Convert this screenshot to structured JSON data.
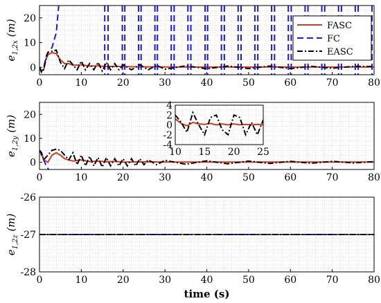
{
  "chart_data": [
    {
      "type": "line",
      "ylabel": "e_{1,2x} (m)",
      "ylabel_main": "e",
      "ylabel_sub": "1,2x",
      "ylabel_unit": "(m)",
      "xlim": [
        0,
        80
      ],
      "ylim": [
        -3,
        25
      ],
      "x_ticks": [
        "0",
        "10",
        "20",
        "30",
        "40",
        "50",
        "60",
        "70",
        "80"
      ],
      "y_ticks": [
        "0",
        "10",
        "20"
      ],
      "grid": "on (minor, dotted)",
      "legend": {
        "placement": "top-right",
        "entries": [
          "FASC",
          "FC",
          "EASC"
        ]
      },
      "series": [
        {
          "name": "FASC",
          "color": "#d03b20",
          "style": "solid",
          "x": [
            0,
            0.5,
            1,
            1.5,
            2,
            3,
            4,
            5,
            6,
            7,
            8,
            10,
            12,
            14,
            16,
            18,
            20,
            24,
            28,
            32,
            40,
            50,
            60,
            70,
            80
          ],
          "y": [
            0,
            -1.5,
            -1,
            3,
            5,
            6,
            5.5,
            3,
            1.5,
            1.5,
            0.8,
            1,
            0.5,
            0.6,
            0.3,
            0.4,
            0.3,
            0.2,
            0.2,
            0.1,
            0.1,
            0.1,
            0.1,
            0.1,
            0.1
          ]
        },
        {
          "name": "FC",
          "color": "#1a1adb",
          "style": "dashed",
          "x": [
            0,
            0.5,
            1,
            1.5,
            2,
            3,
            4,
            4.6
          ],
          "y": [
            0,
            -1.5,
            -0.5,
            4,
            6,
            8,
            14,
            25
          ],
          "spikes": [
            15.6,
            16.4,
            19.8,
            20.4,
            23.7,
            24.3,
            27.6,
            28.2,
            31.5,
            32.2,
            35.5,
            36.2,
            39.6,
            40.2,
            43.5,
            44.2,
            47.5,
            48.2,
            51.5,
            52.2,
            55.5,
            56.2,
            59.5,
            60.2,
            63.5,
            64.2,
            67.5,
            68.2,
            71.5,
            72.2,
            75.5,
            76.2,
            79.5
          ]
        },
        {
          "name": "EASC",
          "color": "#000000",
          "style": "dash-dot",
          "x": [
            0,
            0.5,
            1,
            1.5,
            2,
            3,
            4,
            5,
            6,
            7,
            8,
            9,
            10,
            11,
            12,
            13,
            14,
            15,
            16,
            17,
            18,
            19,
            20,
            22,
            24,
            26,
            28,
            30,
            35,
            40,
            45,
            50,
            55,
            60,
            65,
            70,
            75,
            80
          ],
          "y": [
            0,
            -2,
            -1,
            3,
            6,
            6.5,
            7,
            2,
            -0.5,
            3,
            1,
            -1,
            2.5,
            -1,
            1.5,
            -1,
            2,
            -1.5,
            2,
            -1,
            1.5,
            -1,
            1,
            -1,
            1,
            -1,
            0.8,
            -0.8,
            0.6,
            -0.6,
            0.5,
            -0.5,
            0.5,
            -0.5,
            0.4,
            -0.4,
            0.4,
            0.3
          ]
        }
      ]
    },
    {
      "type": "line",
      "ylabel": "e_{1,2y} (m)",
      "ylabel_main": "e",
      "ylabel_sub": "1,2y",
      "ylabel_unit": "(m)",
      "xlim": [
        0,
        80
      ],
      "ylim": [
        -3,
        25
      ],
      "x_ticks": [
        "0",
        "10",
        "20",
        "30",
        "40",
        "50",
        "60",
        "70",
        "80"
      ],
      "y_ticks": [
        "0",
        "10",
        "20"
      ],
      "grid": "on (minor, dotted)",
      "series": [
        {
          "name": "FASC",
          "color": "#d03b20",
          "style": "solid",
          "x": [
            0,
            0.5,
            1,
            2,
            3,
            4,
            5,
            6,
            8,
            10,
            12,
            14,
            16,
            18,
            20,
            25,
            30,
            40,
            50,
            60,
            70,
            80
          ],
          "y": [
            5,
            4,
            1,
            0,
            3,
            4,
            3,
            1.5,
            0.5,
            1,
            0.3,
            0.5,
            0.2,
            0.4,
            0.1,
            0.2,
            0.1,
            0.1,
            0.1,
            0.1,
            0.1,
            0.1
          ]
        },
        {
          "name": "FC",
          "color": "#1a1adb",
          "style": "dashed",
          "x": [
            0,
            0.5,
            1,
            1.5,
            2,
            2.2
          ],
          "y": [
            5,
            3,
            1,
            -1,
            -2.5,
            -3
          ]
        },
        {
          "name": "EASC",
          "color": "#000000",
          "style": "dash-dot",
          "x": [
            0,
            0.5,
            1,
            2,
            3,
            4,
            5,
            6,
            7,
            8,
            9,
            10,
            11,
            12,
            13,
            14,
            15,
            16,
            17,
            18,
            19,
            20,
            21,
            22,
            23,
            24,
            25,
            26,
            28,
            30,
            35,
            40,
            45,
            50,
            55,
            60,
            65,
            70,
            75,
            80
          ],
          "y": [
            5,
            4,
            1,
            3,
            5,
            5.5,
            5,
            3,
            1,
            4,
            -1,
            3,
            -1.5,
            2.5,
            -1.5,
            2,
            -2,
            2,
            -1.5,
            1.5,
            -1.5,
            1.5,
            -1.5,
            1.5,
            -1.5,
            1.5,
            -1,
            1,
            -1,
            0.8,
            -0.8,
            0.6,
            -0.6,
            0.5,
            -0.5,
            0.4,
            -0.4,
            0.4,
            -0.3,
            0.3
          ]
        }
      ],
      "inset": {
        "xlim": [
          10,
          25
        ],
        "ylim": [
          -4,
          4
        ],
        "x_ticks": [
          "10",
          "15",
          "20",
          "25"
        ],
        "y_ticks": [
          "4",
          "2",
          "0",
          "-2",
          "-4"
        ],
        "series": [
          {
            "name": "FASC",
            "color": "#d03b20",
            "style": "solid",
            "x": [
              10,
              11,
              12,
              13,
              14,
              15,
              16,
              17,
              18,
              19,
              20,
              21,
              22,
              23,
              24,
              25
            ],
            "y": [
              1.2,
              0.3,
              -0.2,
              0.5,
              0.2,
              0.1,
              0.3,
              0,
              0.2,
              0,
              0.2,
              0,
              0.1,
              0,
              0.1,
              0
            ]
          },
          {
            "name": "EASC",
            "color": "#000000",
            "style": "dash-dot",
            "x": [
              10,
              11,
              12,
              13,
              14,
              15,
              16,
              17,
              18,
              19,
              20,
              21,
              22,
              23,
              24,
              25
            ],
            "y": [
              2,
              0.5,
              -1.5,
              2.5,
              0,
              -2,
              1.5,
              2,
              -1,
              -2,
              2,
              1.5,
              -2,
              0.5,
              -2,
              1
            ]
          }
        ]
      }
    },
    {
      "type": "line",
      "ylabel": "e_{1,2z} (m)",
      "ylabel_main": "e",
      "ylabel_sub": "1,2z",
      "ylabel_unit": "(m)",
      "xlabel": "time (s)",
      "xlim": [
        0,
        80
      ],
      "ylim": [
        -28,
        -26
      ],
      "x_ticks": [
        "0",
        "10",
        "20",
        "30",
        "40",
        "50",
        "60",
        "70",
        "80"
      ],
      "y_ticks": [
        "-26",
        "-27",
        "-28"
      ],
      "grid": "on (minor, dotted)",
      "series": [
        {
          "name": "FASC",
          "color": "#d03b20",
          "style": "solid",
          "x": [
            0,
            80
          ],
          "y": [
            -27,
            -27
          ]
        },
        {
          "name": "FC",
          "color": "#1a1adb",
          "style": "dashed",
          "x": [
            0,
            80
          ],
          "y": [
            -27,
            -27
          ]
        },
        {
          "name": "EASC",
          "color": "#000000",
          "style": "dash-dot",
          "x": [
            0,
            80
          ],
          "y": [
            -27,
            -27
          ]
        }
      ]
    }
  ]
}
